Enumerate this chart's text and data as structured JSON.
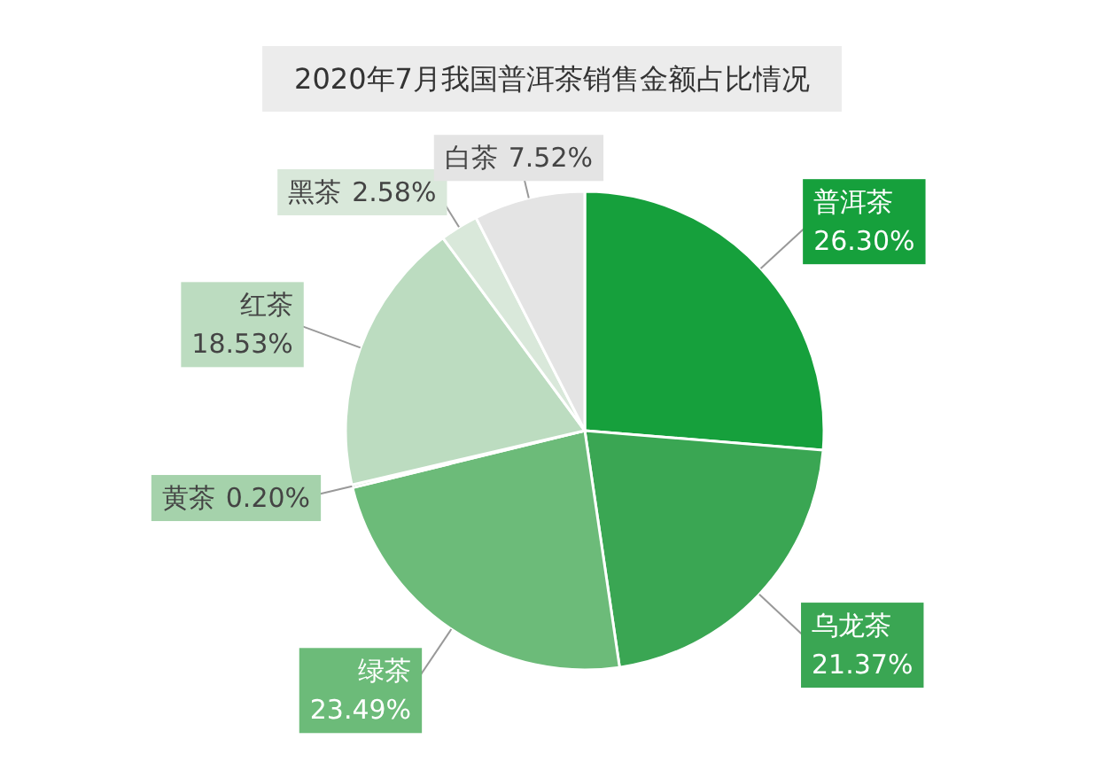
{
  "chart_data": {
    "type": "pie",
    "title": "2020年7月我国普洱茶销售金额占比情况",
    "categories": [
      "普洱茶",
      "乌龙茶",
      "绿茶",
      "黄茶",
      "红茶",
      "黑茶",
      "白茶"
    ],
    "values": [
      26.3,
      21.37,
      23.49,
      0.2,
      18.53,
      2.58,
      7.52
    ],
    "colors": [
      "#16a03c",
      "#3aa653",
      "#6cbb79",
      "#a5d2ab",
      "#bcdcc0",
      "#d9e8da",
      "#e4e4e4"
    ],
    "value_labels": [
      "26.30%",
      "21.37%",
      "23.49%",
      "0.20%",
      "18.53%",
      "2.58%",
      "7.52%"
    ]
  }
}
